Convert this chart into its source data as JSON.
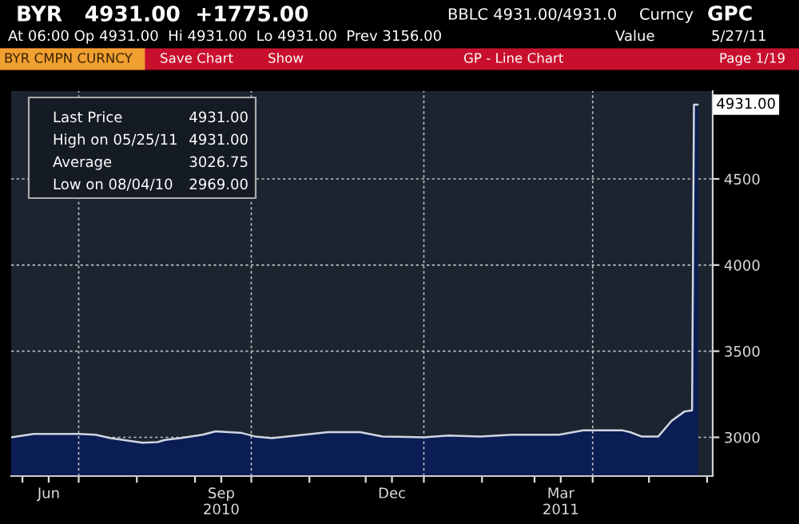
{
  "chart_data": {
    "type": "area",
    "title": "BYR   4931.00  +1775.00",
    "subtitle": "At 06:00 Op 4931.00  Hi 4931.00  Lo 4931.00  Prev 3156.00",
    "x": [
      "2010-05-26",
      "2010-06-07",
      "2010-07-01",
      "2010-07-10",
      "2010-07-18",
      "2010-08-04",
      "2010-08-12",
      "2010-08-16",
      "2010-08-24",
      "2010-09-05",
      "2010-09-12",
      "2010-09-26",
      "2010-10-03",
      "2010-10-12",
      "2010-10-25",
      "2010-11-11",
      "2010-11-28",
      "2010-12-10",
      "2011-01-01",
      "2011-01-14",
      "2011-01-31",
      "2011-02-17",
      "2011-03-14",
      "2011-03-27",
      "2011-04-17",
      "2011-04-21",
      "2011-04-27",
      "2011-05-06",
      "2011-05-13",
      "2011-05-20",
      "2011-05-24",
      "2011-05-25",
      "2011-05-27"
    ],
    "series": [
      {
        "color": "#0b1d55",
        "values": [
          3000,
          3020,
          3020,
          3015,
          2995,
          2969,
          2972,
          2985,
          2995,
          3015,
          3035,
          3025,
          3005,
          2995,
          3010,
          3030,
          3030,
          3005,
          3000,
          3010,
          3005,
          3015,
          3015,
          3040,
          3040,
          3030,
          3005,
          3005,
          3095,
          3150,
          3156,
          4931,
          4931
        ]
      }
    ],
    "ylim": [
      2775,
      5010
    ],
    "yticks": [
      3000,
      3500,
      4000,
      4500
    ],
    "xlim": [
      "2010-05-26",
      "2011-06-04"
    ],
    "xticks": [
      {
        "value": "2010-06-01",
        "label": null
      },
      {
        "value": "2010-06-15",
        "label": "Jun"
      },
      {
        "value": "2010-07-01",
        "label": null
      },
      {
        "value": "2010-08-01",
        "label": null
      },
      {
        "value": "2010-09-01",
        "label": null
      },
      {
        "value": "2010-09-15",
        "label": "Sep\n2010"
      },
      {
        "value": "2010-10-01",
        "label": null
      },
      {
        "value": "2010-11-01",
        "label": null
      },
      {
        "value": "2010-12-01",
        "label": null
      },
      {
        "value": "2010-12-15",
        "label": "Dec"
      },
      {
        "value": "2011-01-01",
        "label": null
      },
      {
        "value": "2011-02-01",
        "label": null
      },
      {
        "value": "2011-03-01",
        "label": null
      },
      {
        "value": "2011-03-15",
        "label": "Mar\n2011"
      },
      {
        "value": "2011-04-01",
        "label": null
      },
      {
        "value": "2011-05-01",
        "label": null
      },
      {
        "value": "2011-06-01",
        "label": null
      }
    ],
    "grid": true,
    "annotations": [
      "BBLC 4931.00/4931.0",
      "Curncy",
      "GPC",
      "Value",
      "5/27/11",
      "BYR CMPN CURNCY",
      "Save Chart",
      "Show",
      "GP - Line Chart",
      "Page 1/19",
      "Last Price",
      "4931.00",
      "High on 05/25/11",
      "4931.00",
      "Average",
      "3026.75",
      "Low on 08/04/10",
      "2969.00",
      {
        "text": "4931.00",
        "x": "2011-05-27",
        "y": 4931
      }
    ]
  }
}
